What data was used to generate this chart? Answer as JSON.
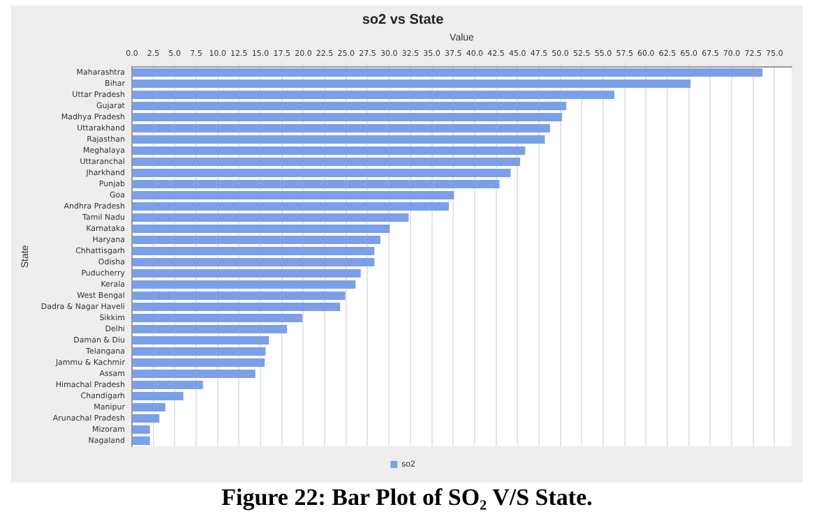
{
  "chart_data": {
    "type": "bar",
    "orientation": "horizontal",
    "title": "so2 vs State",
    "xlabel": "Value",
    "ylabel": "State",
    "categories": [
      "Maharashtra",
      "Bihar",
      "Uttar Pradesh",
      "Gujarat",
      "Madhya Pradesh",
      "Uttarakhand",
      "Rajasthan",
      "Meghalaya",
      "Uttaranchal",
      "Jharkhand",
      "Punjab",
      "Goa",
      "Andhra Pradesh",
      "Tamil Nadu",
      "Karnataka",
      "Haryana",
      "Chhattisgarh",
      "Odisha",
      "Puducherry",
      "Kerala",
      "West Bengal",
      "Dadra & Nagar Haveli",
      "Sikkim",
      "Delhi",
      "Daman & Diu",
      "Telangana",
      "Jammu & Kachmir",
      "Assam",
      "Himachal Pradesh",
      "Chandigarh",
      "Manipur",
      "Arunachal Pradesh",
      "Mizoram",
      "Nagaland"
    ],
    "series": [
      {
        "name": "so2",
        "color": "#7b9fe8",
        "values": [
          73.6,
          65.2,
          56.3,
          50.7,
          50.2,
          48.8,
          48.2,
          45.9,
          45.3,
          44.2,
          42.9,
          37.6,
          37.0,
          32.3,
          30.1,
          29.0,
          28.3,
          28.3,
          26.7,
          26.1,
          24.9,
          24.3,
          19.9,
          18.1,
          16.0,
          15.6,
          15.5,
          14.4,
          8.3,
          6.0,
          3.9,
          3.2,
          2.1,
          2.1
        ]
      }
    ],
    "xlim": [
      0,
      77
    ],
    "xticks": [
      {
        "value": 0,
        "label": "0.0"
      },
      {
        "value": 2.5,
        "label": "2.5"
      },
      {
        "value": 5,
        "label": "5.0"
      },
      {
        "value": 7.5,
        "label": "7.5"
      },
      {
        "value": 10,
        "label": "10.0"
      },
      {
        "value": 12.5,
        "label": "12.5"
      },
      {
        "value": 15,
        "label": "15.0"
      },
      {
        "value": 17.5,
        "label": "17.5"
      },
      {
        "value": 20,
        "label": "20.0"
      },
      {
        "value": 22.5,
        "label": "22.5"
      },
      {
        "value": 25,
        "label": "25.0"
      },
      {
        "value": 27.5,
        "label": "27.5"
      },
      {
        "value": 30,
        "label": "30.0"
      },
      {
        "value": 32.5,
        "label": "32.5"
      },
      {
        "value": 35,
        "label": "35.0"
      },
      {
        "value": 37.5,
        "label": "37.5"
      },
      {
        "value": 40,
        "label": "40.0"
      },
      {
        "value": 42.5,
        "label": "42.5"
      },
      {
        "value": 45,
        "label": "45.0"
      },
      {
        "value": 47.5,
        "label": "47.5"
      },
      {
        "value": 50,
        "label": "50.0"
      },
      {
        "value": 52.5,
        "label": "52.5"
      },
      {
        "value": 55,
        "label": "55.0"
      },
      {
        "value": 57.5,
        "label": "57.5"
      },
      {
        "value": 60,
        "label": "60.0"
      },
      {
        "value": 62.5,
        "label": "62.5"
      },
      {
        "value": 65,
        "label": "65.0"
      },
      {
        "value": 67.5,
        "label": "67.5"
      },
      {
        "value": 70,
        "label": "70.0"
      },
      {
        "value": 72.5,
        "label": "72.5"
      },
      {
        "value": 75,
        "label": "75.0"
      }
    ],
    "grid": "x",
    "legend": "bottom",
    "annotations": [
      "Figure 22: Bar Plot of SO₂ V/S State."
    ]
  }
}
